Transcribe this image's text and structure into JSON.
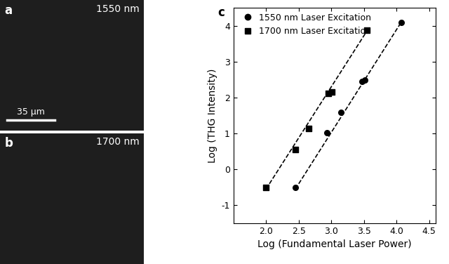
{
  "image_panels": [
    {
      "label": "a",
      "text": "1550 nm",
      "scale_bar": "35 μm"
    },
    {
      "label": "b",
      "text": "1700 nm"
    }
  ],
  "chart_data": {
    "type": "scatter",
    "title": "c",
    "x_label": "Log (Fundamental Laser Power)",
    "y_label": "Log (THG Intensity)",
    "xlim": [
      1.5,
      4.6
    ],
    "ylim": [
      -1.5,
      4.5
    ],
    "xticks": [
      2.0,
      2.5,
      3.0,
      3.5,
      4.0,
      4.5
    ],
    "yticks": [
      -1,
      0,
      1,
      2,
      3,
      4
    ],
    "legend": "upper left",
    "series": [
      {
        "name": "1550 nm Laser Excitation",
        "type": "scatter",
        "marker": "circle",
        "color": "#000000",
        "x": [
          2.45,
          2.93,
          3.15,
          3.47,
          3.52,
          4.07
        ],
        "values": [
          -0.5,
          1.02,
          1.58,
          2.44,
          2.48,
          4.09
        ]
      },
      {
        "name": "1700 nm Laser Excitation",
        "type": "scatter",
        "marker": "square",
        "color": "#000000",
        "x": [
          2.0,
          2.45,
          2.65,
          2.95,
          3.01,
          3.55
        ],
        "values": [
          -0.5,
          0.55,
          1.13,
          2.12,
          2.15,
          3.87
        ]
      },
      {
        "type": "line",
        "line_style": "dashed",
        "color": "#000000",
        "x": [
          2.45,
          4.08
        ],
        "values": [
          -0.55,
          4.12
        ]
      },
      {
        "type": "line",
        "line_style": "dashed",
        "color": "#000000",
        "x": [
          2.0,
          3.58
        ],
        "values": [
          -0.55,
          3.95
        ]
      }
    ]
  }
}
